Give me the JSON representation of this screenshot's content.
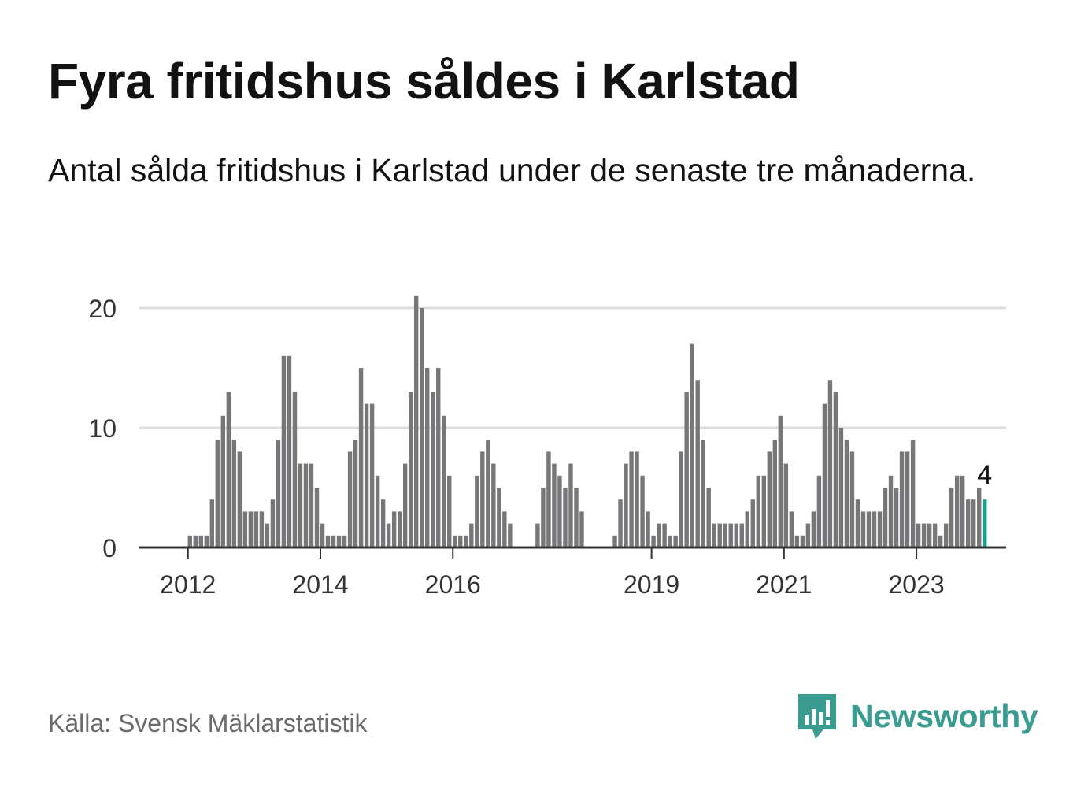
{
  "header": {
    "title": "Fyra fritidshus såldes i Karlstad",
    "subtitle": "Antal sålda fritidshus i Karlstad under de senaste tre månaderna."
  },
  "footer": {
    "source": "Källa: Svensk Mäklarstatistik",
    "brand": "Newsworthy"
  },
  "colors": {
    "bar": "#77777a",
    "highlight": "#1a9e8f",
    "grid": "#dddddd",
    "axis": "#333333",
    "brand": "#3a9b90"
  },
  "chart_data": {
    "type": "bar",
    "title": "Fyra fritidshus såldes i Karlstad",
    "xlabel": "",
    "ylabel": "",
    "ylim": [
      0,
      20
    ],
    "yticks": [
      0,
      10,
      20
    ],
    "grid": true,
    "legend": "none",
    "x_start": "2011-06",
    "x_end": "2023-12",
    "xtick_labels": [
      {
        "year": "2012",
        "month": "2012-01"
      },
      {
        "year": "2014",
        "month": "2014-01"
      },
      {
        "year": "2016",
        "month": "2016-01"
      },
      {
        "year": "2019",
        "month": "2019-01"
      },
      {
        "year": "2021",
        "month": "2021-01"
      },
      {
        "year": "2023",
        "month": "2023-01"
      }
    ],
    "values": [
      null,
      null,
      null,
      null,
      null,
      null,
      null,
      1,
      1,
      1,
      1,
      4,
      9,
      11,
      13,
      9,
      8,
      3,
      3,
      3,
      3,
      2,
      4,
      9,
      16,
      16,
      13,
      7,
      7,
      7,
      5,
      2,
      1,
      1,
      1,
      1,
      8,
      9,
      15,
      12,
      12,
      6,
      4,
      2,
      3,
      3,
      7,
      13,
      21,
      20,
      15,
      13,
      15,
      11,
      6,
      1,
      1,
      1,
      2,
      6,
      8,
      9,
      7,
      5,
      3,
      2,
      null,
      null,
      null,
      null,
      2,
      5,
      8,
      7,
      6,
      5,
      7,
      5,
      3,
      null,
      null,
      null,
      null,
      null,
      1,
      4,
      7,
      8,
      8,
      6,
      3,
      1,
      2,
      2,
      1,
      1,
      8,
      13,
      17,
      14,
      9,
      5,
      2,
      2,
      2,
      2,
      2,
      2,
      3,
      4,
      6,
      6,
      8,
      9,
      11,
      7,
      3,
      1,
      1,
      2,
      3,
      6,
      12,
      14,
      13,
      10,
      9,
      8,
      4,
      3,
      3,
      3,
      3,
      5,
      6,
      5,
      8,
      8,
      9,
      2,
      2,
      2,
      2,
      1,
      2,
      5,
      6,
      6,
      4,
      4,
      5,
      4
    ],
    "highlight_last": true,
    "highlight_label": "4"
  }
}
